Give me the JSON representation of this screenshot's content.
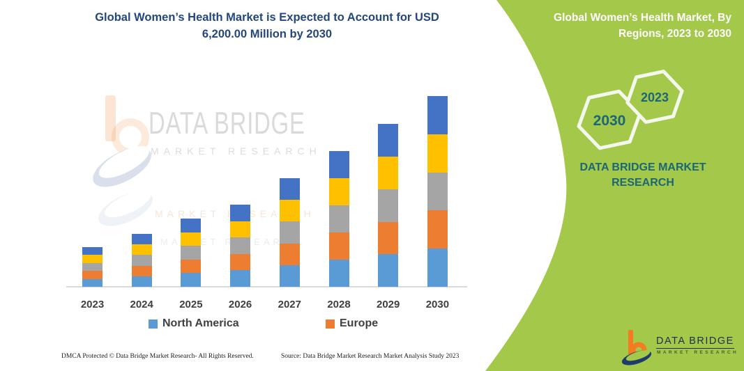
{
  "header": {
    "title_line1": "Global Women’s Health Market is Expected to Account for USD",
    "title_line2": "6,200.00 Million by 2030",
    "title_color": "#24477D"
  },
  "watermark": {
    "brand": "DATA BRIDGE",
    "sub": "MARKET RESEARCH"
  },
  "chart_data": {
    "type": "bar",
    "stacked": true,
    "title": "Global Women’s Health Market is Expected to Account for USD 6,200.00 Million by 2030",
    "unit": "USD Million",
    "categories": [
      "2023",
      "2024",
      "2025",
      "2026",
      "2027",
      "2028",
      "2029",
      "2030"
    ],
    "series": [
      {
        "legend_label": "North America",
        "color": "#5B9BD5",
        "values": [
          258,
          344,
          443,
          534,
          706,
          882,
          1058,
          1240
        ]
      },
      {
        "legend_label": "Europe",
        "color": "#ED7D31",
        "values": [
          258,
          344,
          443,
          534,
          706,
          882,
          1058,
          1240
        ]
      },
      {
        "legend_label": "",
        "color": "#A5A5A5",
        "values": [
          258,
          344,
          443,
          534,
          706,
          882,
          1058,
          1240
        ]
      },
      {
        "legend_label": "",
        "color": "#FFC000",
        "values": [
          258,
          344,
          443,
          534,
          706,
          882,
          1058,
          1240
        ]
      },
      {
        "legend_label": "",
        "color": "#4472C4",
        "values": [
          258,
          344,
          443,
          534,
          706,
          882,
          1058,
          1240
        ]
      }
    ],
    "totals": [
      1290,
      1720,
      2215,
      2670,
      3530,
      4410,
      5290,
      6200
    ],
    "ylim": [
      0,
      6200
    ],
    "grid": false,
    "y_axis_visible": false,
    "legend_position": "bottom",
    "legend": [
      {
        "label": "North America",
        "color": "#5B9BD5"
      },
      {
        "label": "Europe",
        "color": "#ED7D31"
      }
    ]
  },
  "side_panel": {
    "bg_color": "#A4C84A",
    "heading": "Global Women’s Health Market, By Regions, 2023 to 2030",
    "hexagon_back_year": "2030",
    "hexagon_front_year": "2023",
    "brand_text": "DATA BRIDGE MARKET RESEARCH",
    "brand_color": "#1B6775",
    "logo_name": "DATA BRIDGE",
    "logo_sub": "MARKET RESEARCH"
  },
  "footer": {
    "left": "DMCA Protected © Data Bridge Market Research-  All Rights Reserved.",
    "right": "Source: Data Bridge Market Research  Market Analysis Study 2023"
  }
}
